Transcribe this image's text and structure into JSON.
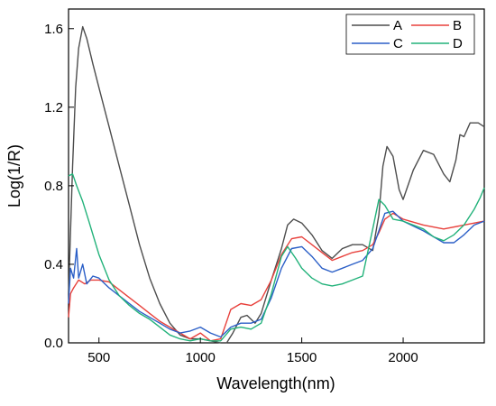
{
  "chart_data": {
    "type": "line",
    "title": "",
    "xlabel": "Wavelength(nm)",
    "ylabel": "Log(1/R)",
    "xlim": [
      350,
      2400
    ],
    "ylim": [
      0,
      1.7
    ],
    "xticks": [
      500,
      1000,
      1500,
      2000
    ],
    "xtick_labels": [
      "500",
      "1000",
      "1500",
      "2000"
    ],
    "yticks": [
      0.0,
      0.4,
      0.8,
      1.2,
      1.6
    ],
    "ytick_labels": [
      "0.0",
      "0.4",
      "0.8",
      "1.2",
      "1.6"
    ],
    "grid": false,
    "legend_position": "top-right",
    "series": [
      {
        "name": "A",
        "color": "#4d4d4d",
        "points": [
          [
            350,
            0.25
          ],
          [
            370,
            0.9
          ],
          [
            385,
            1.3
          ],
          [
            400,
            1.5
          ],
          [
            420,
            1.61
          ],
          [
            440,
            1.55
          ],
          [
            470,
            1.42
          ],
          [
            500,
            1.3
          ],
          [
            550,
            1.1
          ],
          [
            600,
            0.9
          ],
          [
            650,
            0.7
          ],
          [
            700,
            0.5
          ],
          [
            750,
            0.33
          ],
          [
            800,
            0.2
          ],
          [
            850,
            0.1
          ],
          [
            900,
            0.04
          ],
          [
            950,
            0.02
          ],
          [
            1000,
            0.02
          ],
          [
            1050,
            0.01
          ],
          [
            1100,
            0.0
          ],
          [
            1130,
            0.0
          ],
          [
            1160,
            0.05
          ],
          [
            1200,
            0.13
          ],
          [
            1230,
            0.14
          ],
          [
            1270,
            0.1
          ],
          [
            1300,
            0.15
          ],
          [
            1350,
            0.32
          ],
          [
            1400,
            0.48
          ],
          [
            1430,
            0.6
          ],
          [
            1460,
            0.63
          ],
          [
            1500,
            0.61
          ],
          [
            1550,
            0.55
          ],
          [
            1600,
            0.47
          ],
          [
            1650,
            0.43
          ],
          [
            1700,
            0.48
          ],
          [
            1750,
            0.5
          ],
          [
            1800,
            0.5
          ],
          [
            1850,
            0.47
          ],
          [
            1880,
            0.65
          ],
          [
            1900,
            0.9
          ],
          [
            1920,
            1.0
          ],
          [
            1950,
            0.95
          ],
          [
            1980,
            0.78
          ],
          [
            2000,
            0.73
          ],
          [
            2050,
            0.88
          ],
          [
            2100,
            0.98
          ],
          [
            2150,
            0.96
          ],
          [
            2200,
            0.86
          ],
          [
            2230,
            0.82
          ],
          [
            2260,
            0.93
          ],
          [
            2280,
            1.06
          ],
          [
            2300,
            1.05
          ],
          [
            2330,
            1.12
          ],
          [
            2370,
            1.12
          ],
          [
            2400,
            1.1
          ]
        ]
      },
      {
        "name": "B",
        "color": "#e8413c",
        "points": [
          [
            350,
            0.13
          ],
          [
            360,
            0.25
          ],
          [
            375,
            0.28
          ],
          [
            400,
            0.32
          ],
          [
            430,
            0.3
          ],
          [
            460,
            0.32
          ],
          [
            500,
            0.32
          ],
          [
            550,
            0.31
          ],
          [
            600,
            0.27
          ],
          [
            650,
            0.23
          ],
          [
            700,
            0.19
          ],
          [
            750,
            0.15
          ],
          [
            800,
            0.11
          ],
          [
            850,
            0.08
          ],
          [
            900,
            0.05
          ],
          [
            950,
            0.02
          ],
          [
            1000,
            0.05
          ],
          [
            1050,
            0.01
          ],
          [
            1100,
            0.02
          ],
          [
            1150,
            0.17
          ],
          [
            1200,
            0.2
          ],
          [
            1250,
            0.19
          ],
          [
            1300,
            0.22
          ],
          [
            1350,
            0.32
          ],
          [
            1400,
            0.45
          ],
          [
            1450,
            0.53
          ],
          [
            1500,
            0.54
          ],
          [
            1550,
            0.5
          ],
          [
            1600,
            0.46
          ],
          [
            1650,
            0.42
          ],
          [
            1700,
            0.44
          ],
          [
            1750,
            0.46
          ],
          [
            1800,
            0.47
          ],
          [
            1850,
            0.5
          ],
          [
            1880,
            0.56
          ],
          [
            1910,
            0.63
          ],
          [
            1950,
            0.66
          ],
          [
            2000,
            0.63
          ],
          [
            2100,
            0.6
          ],
          [
            2200,
            0.58
          ],
          [
            2300,
            0.6
          ],
          [
            2400,
            0.62
          ]
        ]
      },
      {
        "name": "C",
        "color": "#2b5fc7",
        "points": [
          [
            350,
            0.2
          ],
          [
            360,
            0.38
          ],
          [
            375,
            0.33
          ],
          [
            390,
            0.48
          ],
          [
            400,
            0.33
          ],
          [
            420,
            0.4
          ],
          [
            440,
            0.3
          ],
          [
            470,
            0.34
          ],
          [
            500,
            0.33
          ],
          [
            550,
            0.28
          ],
          [
            600,
            0.24
          ],
          [
            650,
            0.2
          ],
          [
            700,
            0.16
          ],
          [
            750,
            0.13
          ],
          [
            800,
            0.1
          ],
          [
            850,
            0.07
          ],
          [
            900,
            0.05
          ],
          [
            950,
            0.06
          ],
          [
            1000,
            0.08
          ],
          [
            1050,
            0.05
          ],
          [
            1100,
            0.03
          ],
          [
            1150,
            0.08
          ],
          [
            1200,
            0.1
          ],
          [
            1250,
            0.1
          ],
          [
            1300,
            0.12
          ],
          [
            1350,
            0.23
          ],
          [
            1400,
            0.38
          ],
          [
            1450,
            0.48
          ],
          [
            1500,
            0.49
          ],
          [
            1550,
            0.44
          ],
          [
            1600,
            0.38
          ],
          [
            1650,
            0.36
          ],
          [
            1700,
            0.38
          ],
          [
            1750,
            0.4
          ],
          [
            1800,
            0.42
          ],
          [
            1850,
            0.48
          ],
          [
            1880,
            0.57
          ],
          [
            1910,
            0.66
          ],
          [
            1950,
            0.67
          ],
          [
            2000,
            0.62
          ],
          [
            2100,
            0.57
          ],
          [
            2200,
            0.51
          ],
          [
            2250,
            0.51
          ],
          [
            2300,
            0.55
          ],
          [
            2350,
            0.6
          ],
          [
            2400,
            0.62
          ]
        ]
      },
      {
        "name": "D",
        "color": "#22b27a",
        "points": [
          [
            350,
            0.85
          ],
          [
            370,
            0.86
          ],
          [
            390,
            0.8
          ],
          [
            420,
            0.72
          ],
          [
            450,
            0.62
          ],
          [
            500,
            0.45
          ],
          [
            550,
            0.32
          ],
          [
            600,
            0.24
          ],
          [
            650,
            0.19
          ],
          [
            700,
            0.15
          ],
          [
            750,
            0.12
          ],
          [
            800,
            0.08
          ],
          [
            850,
            0.04
          ],
          [
            900,
            0.02
          ],
          [
            950,
            0.01
          ],
          [
            1000,
            0.02
          ],
          [
            1050,
            0.01
          ],
          [
            1100,
            0.01
          ],
          [
            1150,
            0.07
          ],
          [
            1200,
            0.08
          ],
          [
            1250,
            0.07
          ],
          [
            1300,
            0.1
          ],
          [
            1350,
            0.25
          ],
          [
            1400,
            0.44
          ],
          [
            1430,
            0.49
          ],
          [
            1470,
            0.43
          ],
          [
            1500,
            0.38
          ],
          [
            1550,
            0.33
          ],
          [
            1600,
            0.3
          ],
          [
            1650,
            0.29
          ],
          [
            1700,
            0.3
          ],
          [
            1750,
            0.32
          ],
          [
            1800,
            0.34
          ],
          [
            1850,
            0.58
          ],
          [
            1880,
            0.73
          ],
          [
            1910,
            0.7
          ],
          [
            1950,
            0.63
          ],
          [
            2000,
            0.62
          ],
          [
            2100,
            0.58
          ],
          [
            2150,
            0.54
          ],
          [
            2200,
            0.52
          ],
          [
            2250,
            0.55
          ],
          [
            2300,
            0.6
          ],
          [
            2350,
            0.68
          ],
          [
            2380,
            0.74
          ],
          [
            2400,
            0.79
          ]
        ]
      }
    ]
  }
}
